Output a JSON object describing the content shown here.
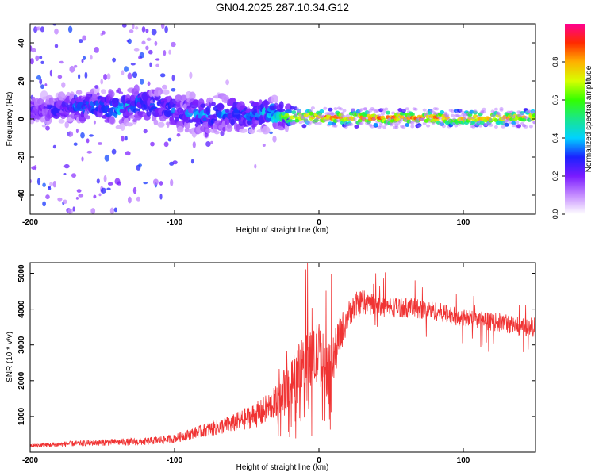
{
  "title": "GN04.2025.287.10.34.G12",
  "chart_data": [
    {
      "type": "heatmap",
      "name": "spectrogram",
      "xlabel": "Height of straight line (km)",
      "ylabel": "Frequency (Hz)",
      "xlim": [
        -200,
        150
      ],
      "ylim": [
        -50,
        50
      ],
      "x_ticks": [
        -200,
        -100,
        0,
        100
      ],
      "y_ticks": [
        -40,
        -20,
        0,
        20,
        40
      ],
      "colorbar": {
        "label": "Normalized spectral amplitude",
        "range": [
          0,
          1
        ],
        "ticks": [
          0.0,
          0.2,
          0.4,
          0.6,
          0.8
        ],
        "tick_labels": [
          "0.0",
          "0.2",
          "0.4",
          "0.6",
          "0.8"
        ],
        "colors": [
          "#ffffff",
          "#c58cff",
          "#7a1bff",
          "#1a22ff",
          "#00d2ff",
          "#19e68c",
          "#33ff00",
          "#d7ff00",
          "#ffb000",
          "#ff2a00",
          "#ff0090"
        ]
      },
      "ridge": [
        {
          "x": -185,
          "y": 5,
          "amp": 0.25,
          "spread": 6
        },
        {
          "x": -170,
          "y": 6,
          "amp": 0.35,
          "spread": 6
        },
        {
          "x": -155,
          "y": 7,
          "amp": 0.35,
          "spread": 7
        },
        {
          "x": -140,
          "y": 5,
          "amp": 0.4,
          "spread": 7
        },
        {
          "x": -125,
          "y": 8,
          "amp": 0.35,
          "spread": 8
        },
        {
          "x": -110,
          "y": 7,
          "amp": 0.3,
          "spread": 8
        },
        {
          "x": -95,
          "y": 3,
          "amp": 0.3,
          "spread": 8
        },
        {
          "x": -80,
          "y": 2,
          "amp": 0.35,
          "spread": 8
        },
        {
          "x": -65,
          "y": 3,
          "amp": 0.35,
          "spread": 8
        },
        {
          "x": -50,
          "y": 2,
          "amp": 0.35,
          "spread": 7
        },
        {
          "x": -35,
          "y": 3,
          "amp": 0.4,
          "spread": 7
        },
        {
          "x": -20,
          "y": 1,
          "amp": 0.7,
          "spread": 4
        },
        {
          "x": 0,
          "y": 1,
          "amp": 0.9,
          "spread": 3
        },
        {
          "x": 30,
          "y": 0.5,
          "amp": 0.9,
          "spread": 3
        },
        {
          "x": 60,
          "y": 0.5,
          "amp": 0.9,
          "spread": 3
        },
        {
          "x": 90,
          "y": 0.5,
          "amp": 0.9,
          "spread": 3
        },
        {
          "x": 120,
          "y": 0.5,
          "amp": 0.85,
          "spread": 3
        },
        {
          "x": 150,
          "y": 1,
          "amp": 0.8,
          "spread": 3
        }
      ]
    },
    {
      "type": "line",
      "name": "snr",
      "xlabel": "Height of straight line (km)",
      "ylabel": "SNR (10 * v/v)",
      "xlim": [
        -200,
        150
      ],
      "ylim": [
        0,
        5300
      ],
      "x_ticks": [
        -200,
        -100,
        0,
        100
      ],
      "y_ticks": [
        1000,
        2000,
        3000,
        4000,
        5000
      ],
      "color": "#f03333",
      "envelope": {
        "x": [
          -200,
          -180,
          -160,
          -140,
          -120,
          -100,
          -90,
          -80,
          -70,
          -60,
          -50,
          -40,
          -30,
          -25,
          -20,
          -15,
          -10,
          -5,
          0,
          5,
          10,
          15,
          20,
          25,
          30,
          40,
          50,
          60,
          70,
          80,
          90,
          100,
          110,
          120,
          130,
          140,
          150
        ],
        "y": [
          180,
          220,
          260,
          280,
          300,
          380,
          500,
          600,
          700,
          800,
          950,
          1100,
          1400,
          1700,
          1900,
          2200,
          2700,
          2500,
          2800,
          2300,
          2600,
          3300,
          3800,
          4100,
          4200,
          4100,
          4050,
          4050,
          4000,
          3950,
          3850,
          3750,
          3700,
          3650,
          3600,
          3500,
          3500
        ]
      },
      "noise": {
        "x": [
          -200,
          -100,
          -60,
          -30,
          -20,
          -10,
          0,
          10,
          20,
          40,
          100,
          150
        ],
        "y": [
          60,
          120,
          250,
          450,
          650,
          800,
          900,
          700,
          400,
          300,
          250,
          280
        ]
      }
    }
  ]
}
